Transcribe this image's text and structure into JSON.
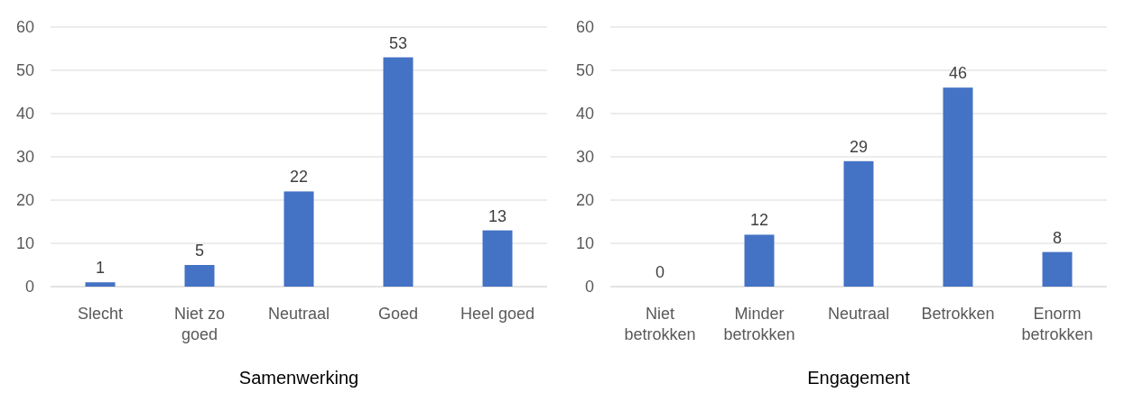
{
  "chart_data": [
    {
      "type": "bar",
      "xlabel": "Samenwerking",
      "categories": [
        "Slecht",
        "Niet zo goed",
        "Neutraal",
        "Goed",
        "Heel goed"
      ],
      "values": [
        1,
        5,
        22,
        53,
        13
      ],
      "color": "#4472c4",
      "ylim": [
        0,
        60
      ],
      "yticks": [
        0,
        10,
        20,
        30,
        40,
        50,
        60
      ],
      "grid": "y",
      "data_labels": true
    },
    {
      "type": "bar",
      "xlabel": "Engagement",
      "categories": [
        "Niet betrokken",
        "Minder betrokken",
        "Neutraal",
        "Betrokken",
        "Enorm betrokken"
      ],
      "values": [
        0,
        12,
        29,
        46,
        8
      ],
      "color": "#4472c4",
      "ylim": [
        0,
        60
      ],
      "yticks": [
        0,
        10,
        20,
        30,
        40,
        50,
        60
      ],
      "grid": "y",
      "data_labels": true
    }
  ]
}
